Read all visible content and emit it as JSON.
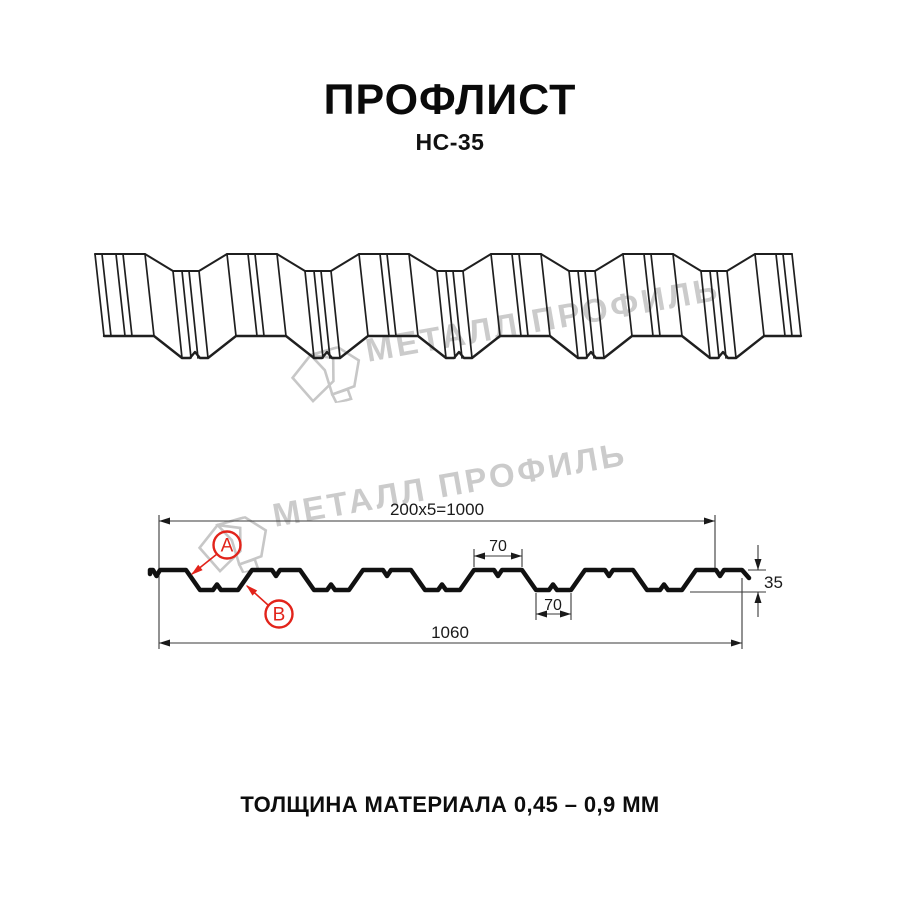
{
  "title": "ПРОФЛИСТ",
  "subtitle": "НС-35",
  "watermark": {
    "text": "МЕТАЛЛ ПРОФИЛЬ"
  },
  "dimensions": {
    "top_width": "200x5=1000",
    "rib_top_width": "70",
    "height": "35",
    "rib_bottom_width": "70",
    "total_width": "1060",
    "label_a": "A",
    "label_b": "B"
  },
  "footer": {
    "text": "ТОЛЩИНА МАТЕРИАЛА 0,45 – 0,9 ММ"
  },
  "colors": {
    "line": "#1f1f1f",
    "profile": "#111111",
    "accent_red": "#e2231a",
    "watermark": "#cbcbcb"
  }
}
